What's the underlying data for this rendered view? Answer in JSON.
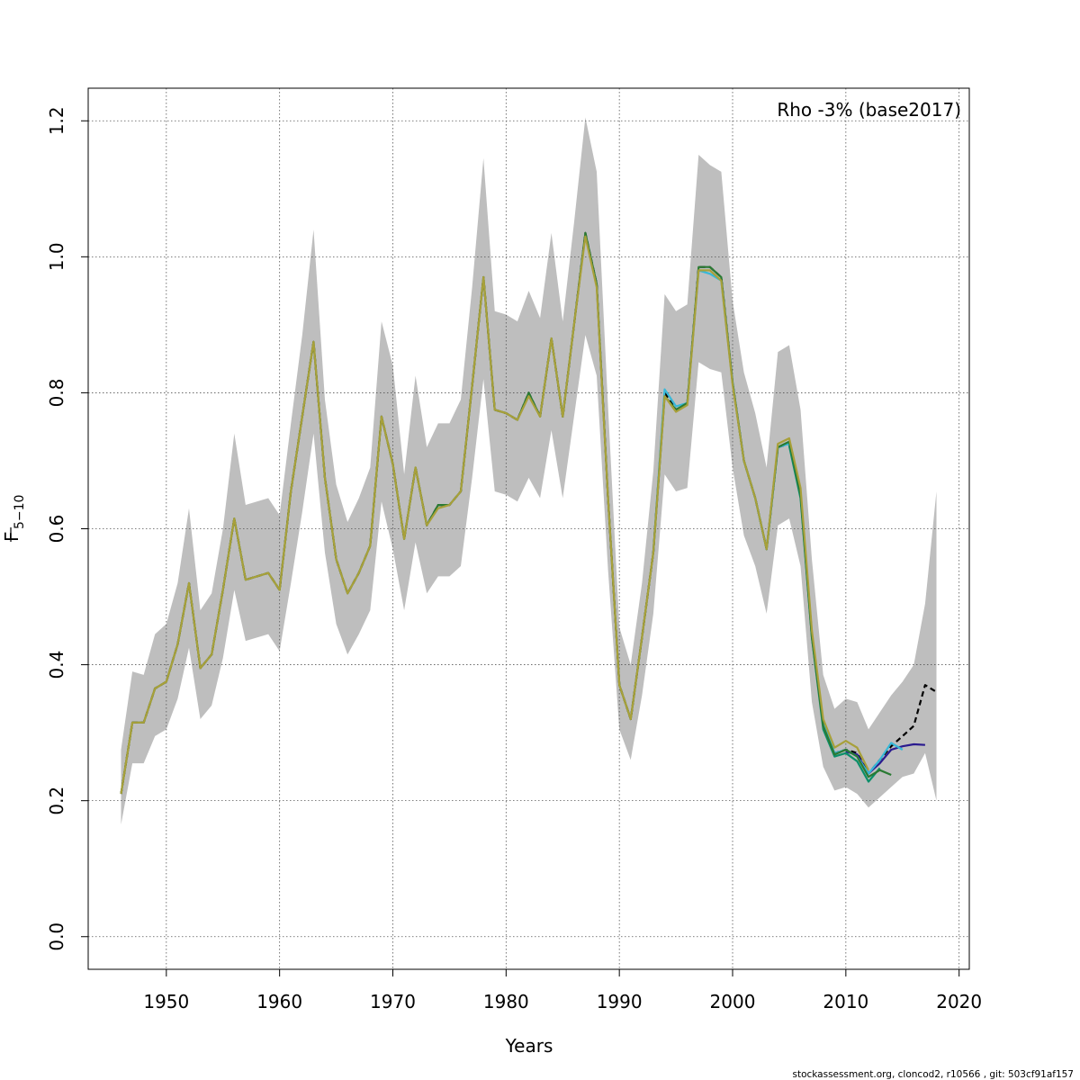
{
  "chart_data": {
    "type": "line",
    "annotation": "Rho -3% (base2017)",
    "xlabel": "Years",
    "ylabel_main": "F",
    "ylabel_sub": "5−10",
    "footer": "stockassessment.org, cloncod2, r10566 , git: 503cf91af157",
    "xlim": [
      1943.1,
      2020.9
    ],
    "ylim": [
      -0.048,
      1.248
    ],
    "xticks": [
      1950,
      1960,
      1970,
      1980,
      1990,
      2000,
      2010,
      2020
    ],
    "yticks": [
      0.0,
      0.2,
      0.4,
      0.6,
      0.8,
      1.0,
      1.2
    ],
    "xtick_labels": [
      "1950",
      "1960",
      "1970",
      "1980",
      "1990",
      "2000",
      "2010",
      "2020"
    ],
    "ytick_labels": [
      "0.0",
      "0.2",
      "0.4",
      "0.6",
      "0.8",
      "1.0",
      "1.2"
    ],
    "grid": true,
    "band_color": "#bebebe",
    "confidence_band": {
      "x": [
        1946,
        1947,
        1948,
        1949,
        1950,
        1951,
        1952,
        1953,
        1954,
        1955,
        1956,
        1957,
        1958,
        1959,
        1960,
        1961,
        1962,
        1963,
        1964,
        1965,
        1966,
        1967,
        1968,
        1969,
        1970,
        1971,
        1972,
        1973,
        1974,
        1975,
        1976,
        1977,
        1978,
        1979,
        1980,
        1981,
        1982,
        1983,
        1984,
        1985,
        1986,
        1987,
        1988,
        1989,
        1990,
        1991,
        1992,
        1993,
        1994,
        1995,
        1996,
        1997,
        1998,
        1999,
        2000,
        2001,
        2002,
        2003,
        2004,
        2005,
        2006,
        2007,
        2008,
        2009,
        2010,
        2011,
        2012,
        2013,
        2014,
        2015,
        2016,
        2017,
        2018
      ],
      "lower": [
        0.165,
        0.255,
        0.255,
        0.295,
        0.305,
        0.35,
        0.425,
        0.32,
        0.34,
        0.41,
        0.51,
        0.435,
        0.44,
        0.445,
        0.42,
        0.52,
        0.625,
        0.74,
        0.565,
        0.46,
        0.415,
        0.445,
        0.48,
        0.64,
        0.57,
        0.48,
        0.58,
        0.505,
        0.53,
        0.53,
        0.545,
        0.675,
        0.82,
        0.655,
        0.65,
        0.64,
        0.675,
        0.645,
        0.745,
        0.645,
        0.765,
        0.885,
        0.825,
        0.54,
        0.305,
        0.26,
        0.355,
        0.475,
        0.68,
        0.655,
        0.66,
        0.845,
        0.835,
        0.83,
        0.69,
        0.59,
        0.545,
        0.475,
        0.605,
        0.615,
        0.545,
        0.345,
        0.25,
        0.215,
        0.22,
        0.21,
        0.19,
        0.205,
        0.22,
        0.235,
        0.24,
        0.27,
        0.2
      ],
      "upper": [
        0.275,
        0.39,
        0.385,
        0.445,
        0.46,
        0.52,
        0.63,
        0.48,
        0.505,
        0.6,
        0.74,
        0.635,
        0.64,
        0.645,
        0.62,
        0.755,
        0.885,
        1.04,
        0.79,
        0.665,
        0.61,
        0.645,
        0.69,
        0.905,
        0.84,
        0.68,
        0.825,
        0.72,
        0.755,
        0.755,
        0.79,
        0.955,
        1.145,
        0.92,
        0.915,
        0.905,
        0.95,
        0.91,
        1.035,
        0.905,
        1.05,
        1.205,
        1.125,
        0.78,
        0.455,
        0.4,
        0.52,
        0.685,
        0.945,
        0.92,
        0.93,
        1.15,
        1.135,
        1.125,
        0.935,
        0.83,
        0.77,
        0.69,
        0.86,
        0.87,
        0.775,
        0.555,
        0.385,
        0.335,
        0.35,
        0.345,
        0.305,
        0.33,
        0.355,
        0.375,
        0.4,
        0.49,
        0.655
      ]
    },
    "series": [
      {
        "color": "#000000",
        "dashed": true,
        "x": [
          1946,
          1947,
          1948,
          1949,
          1950,
          1951,
          1952,
          1953,
          1954,
          1955,
          1956,
          1957,
          1958,
          1959,
          1960,
          1961,
          1962,
          1963,
          1964,
          1965,
          1966,
          1967,
          1968,
          1969,
          1970,
          1971,
          1972,
          1973,
          1974,
          1975,
          1976,
          1977,
          1978,
          1979,
          1980,
          1981,
          1982,
          1983,
          1984,
          1985,
          1986,
          1987,
          1988,
          1989,
          1990,
          1991,
          1992,
          1993,
          1994,
          1995,
          1996,
          1997,
          1998,
          1999,
          2000,
          2001,
          2002,
          2003,
          2004,
          2005,
          2006,
          2007,
          2008,
          2009,
          2010,
          2011,
          2012,
          2013,
          2014,
          2015,
          2016,
          2017,
          2018
        ],
        "y": [
          0.21,
          0.315,
          0.315,
          0.365,
          0.375,
          0.43,
          0.52,
          0.395,
          0.415,
          0.51,
          0.615,
          0.525,
          0.53,
          0.535,
          0.51,
          0.655,
          0.765,
          0.875,
          0.675,
          0.555,
          0.505,
          0.535,
          0.575,
          0.765,
          0.695,
          0.585,
          0.69,
          0.605,
          0.635,
          0.635,
          0.655,
          0.81,
          0.97,
          0.775,
          0.77,
          0.76,
          0.8,
          0.765,
          0.88,
          0.765,
          0.9,
          1.035,
          0.96,
          0.645,
          0.37,
          0.32,
          0.44,
          0.565,
          0.8,
          0.775,
          0.785,
          0.985,
          0.985,
          0.97,
          0.815,
          0.7,
          0.645,
          0.57,
          0.72,
          0.725,
          0.65,
          0.445,
          0.315,
          0.27,
          0.275,
          0.27,
          0.24,
          0.26,
          0.28,
          0.295,
          0.31,
          0.37,
          0.36
        ]
      },
      {
        "color": "#2a1a8f",
        "dashed": false,
        "x": [
          2010,
          2011,
          2012,
          2013,
          2014,
          2015,
          2016,
          2017
        ],
        "y": [
          0.272,
          0.268,
          0.24,
          0.255,
          0.275,
          0.28,
          0.283,
          0.282
        ]
      },
      {
        "color": "#37b8d8",
        "dashed": false,
        "x": [
          1993,
          1994,
          1995,
          1996,
          1997,
          1998,
          1999,
          2000,
          2001,
          2002,
          2003,
          2004,
          2005,
          2006,
          2007,
          2008,
          2009,
          2010,
          2011,
          2012,
          2013,
          2014,
          2015
        ],
        "y": [
          0.565,
          0.805,
          0.78,
          0.785,
          0.98,
          0.975,
          0.965,
          0.815,
          0.7,
          0.645,
          0.57,
          0.72,
          0.725,
          0.65,
          0.445,
          0.315,
          0.27,
          0.275,
          0.265,
          0.24,
          0.26,
          0.285,
          0.275
        ]
      },
      {
        "color": "#0b8f6a",
        "dashed": false,
        "x": [
          2005,
          2006,
          2007,
          2008,
          2009,
          2010,
          2011,
          2012,
          2013
        ],
        "y": [
          0.722,
          0.645,
          0.44,
          0.305,
          0.265,
          0.27,
          0.258,
          0.228,
          0.248
        ]
      },
      {
        "color": "#2a7a33",
        "dashed": false,
        "x": [
          1946,
          1947,
          1948,
          1949,
          1950,
          1951,
          1952,
          1953,
          1954,
          1955,
          1956,
          1957,
          1958,
          1959,
          1960,
          1961,
          1962,
          1963,
          1964,
          1965,
          1966,
          1967,
          1968,
          1969,
          1970,
          1971,
          1972,
          1973,
          1974,
          1975,
          1976,
          1977,
          1978,
          1979,
          1980,
          1981,
          1982,
          1983,
          1984,
          1985,
          1986,
          1987,
          1988,
          1989,
          1990,
          1991,
          1992,
          1993,
          1994,
          1995,
          1996,
          1997,
          1998,
          1999,
          2000,
          2001,
          2002,
          2003,
          2004,
          2005,
          2006,
          2007,
          2008,
          2009,
          2010,
          2011,
          2012,
          2013,
          2014
        ],
        "y": [
          0.21,
          0.315,
          0.315,
          0.365,
          0.375,
          0.43,
          0.52,
          0.395,
          0.415,
          0.51,
          0.615,
          0.525,
          0.53,
          0.535,
          0.51,
          0.655,
          0.765,
          0.875,
          0.675,
          0.555,
          0.505,
          0.535,
          0.575,
          0.765,
          0.695,
          0.585,
          0.69,
          0.605,
          0.635,
          0.635,
          0.655,
          0.81,
          0.97,
          0.775,
          0.77,
          0.76,
          0.8,
          0.765,
          0.88,
          0.765,
          0.9,
          1.035,
          0.96,
          0.645,
          0.37,
          0.32,
          0.44,
          0.565,
          0.795,
          0.775,
          0.785,
          0.985,
          0.985,
          0.97,
          0.815,
          0.7,
          0.645,
          0.57,
          0.72,
          0.728,
          0.65,
          0.44,
          0.31,
          0.268,
          0.275,
          0.265,
          0.235,
          0.245,
          0.238
        ]
      },
      {
        "color": "#a8a03a",
        "dashed": false,
        "x": [
          1946,
          1947,
          1948,
          1949,
          1950,
          1951,
          1952,
          1953,
          1954,
          1955,
          1956,
          1957,
          1958,
          1959,
          1960,
          1961,
          1962,
          1963,
          1964,
          1965,
          1966,
          1967,
          1968,
          1969,
          1970,
          1971,
          1972,
          1973,
          1974,
          1975,
          1976,
          1977,
          1978,
          1979,
          1980,
          1981,
          1982,
          1983,
          1984,
          1985,
          1986,
          1987,
          1988,
          1989,
          1990,
          1991,
          1992,
          1993,
          1994,
          1995,
          1996,
          1997,
          1998,
          1999,
          2000,
          2001,
          2002,
          2003,
          2004,
          2005,
          2006,
          2007,
          2008,
          2009,
          2010,
          2011,
          2012
        ],
        "y": [
          0.21,
          0.315,
          0.315,
          0.365,
          0.375,
          0.43,
          0.52,
          0.395,
          0.415,
          0.51,
          0.615,
          0.525,
          0.53,
          0.535,
          0.51,
          0.655,
          0.765,
          0.875,
          0.675,
          0.555,
          0.505,
          0.535,
          0.575,
          0.765,
          0.695,
          0.585,
          0.69,
          0.605,
          0.63,
          0.635,
          0.655,
          0.81,
          0.97,
          0.775,
          0.77,
          0.76,
          0.795,
          0.765,
          0.88,
          0.765,
          0.9,
          1.03,
          0.955,
          0.645,
          0.37,
          0.32,
          0.44,
          0.565,
          0.795,
          0.772,
          0.782,
          0.98,
          0.98,
          0.965,
          0.812,
          0.7,
          0.645,
          0.57,
          0.725,
          0.733,
          0.66,
          0.45,
          0.32,
          0.278,
          0.288,
          0.278,
          0.245
        ]
      }
    ]
  }
}
